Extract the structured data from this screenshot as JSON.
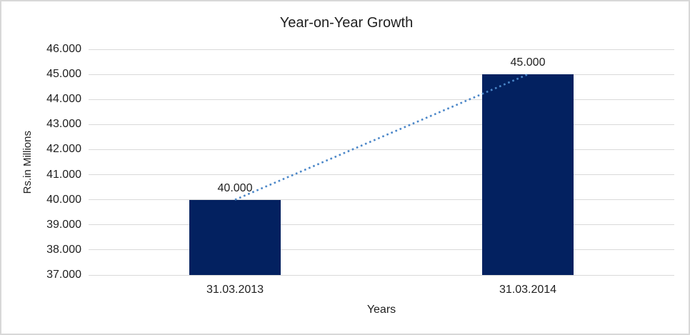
{
  "chart_data": {
    "type": "bar",
    "title": "Year-on-Year Growth",
    "xlabel": "Years",
    "ylabel": "Rs.in Millions",
    "categories": [
      "31.03.2013",
      "31.03.2014"
    ],
    "values": [
      40000,
      45000
    ],
    "data_labels": [
      "40.000",
      "45.000"
    ],
    "y_ticks": [
      {
        "value": 46000,
        "label": "46.000"
      },
      {
        "value": 45000,
        "label": "45.000"
      },
      {
        "value": 44000,
        "label": "44.000"
      },
      {
        "value": 43000,
        "label": "43.000"
      },
      {
        "value": 42000,
        "label": "42.000"
      },
      {
        "value": 41000,
        "label": "41.000"
      },
      {
        "value": 40000,
        "label": "40.000"
      },
      {
        "value": 39000,
        "label": "39.000"
      },
      {
        "value": 38000,
        "label": "38.000"
      },
      {
        "value": 37000,
        "label": "37.000"
      }
    ],
    "ylim": [
      37000,
      46000
    ],
    "grid": true,
    "legend_position": "none",
    "trendline": {
      "type": "linear",
      "style": "dotted"
    },
    "colors": {
      "bar": "#032160",
      "trendline": "#4a86c8",
      "gridline": "#d9d9d9",
      "text": "#1f1f1f",
      "frame_border": "#d8d8d8",
      "background": "#ffffff"
    }
  }
}
